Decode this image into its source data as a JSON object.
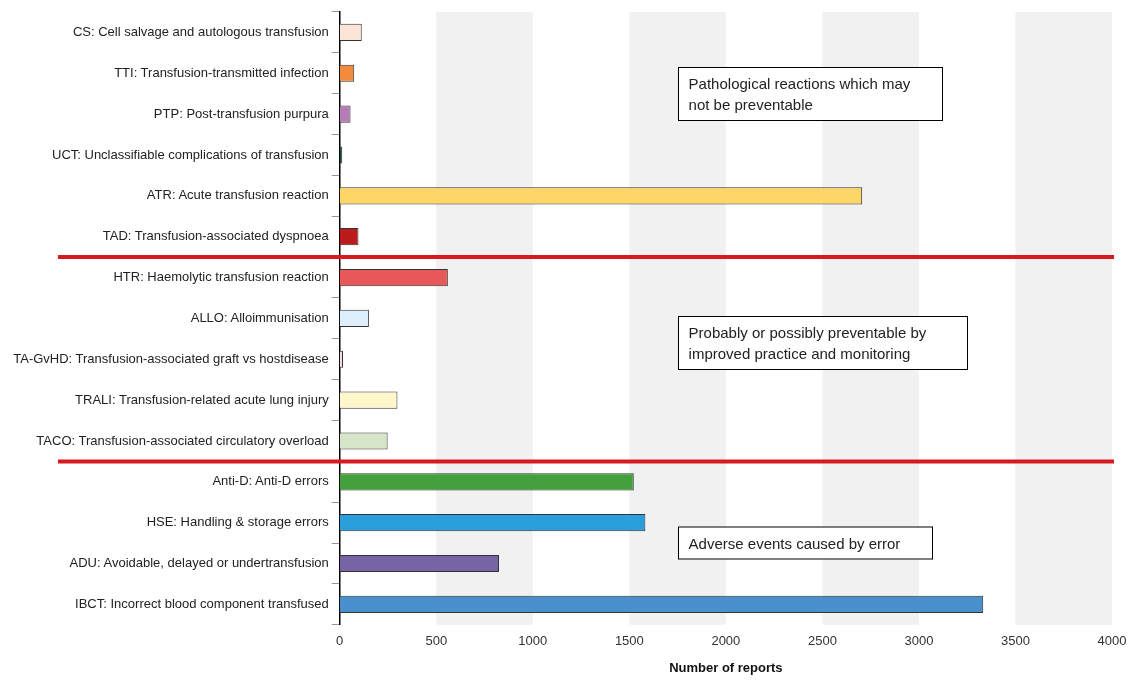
{
  "chart_data": {
    "type": "bar",
    "orientation": "horizontal",
    "xlabel": "Number of reports",
    "categories": [
      "CS: Cell salvage and autologous transfusion",
      "TTI: Transfusion-transmitted infection",
      "PTP: Post-transfusion purpura",
      "UCT: Unclassifiable complications of transfusion",
      "ATR: Acute transfusion reaction",
      "TAD: Transfusion-associated dyspnoea",
      "HTR: Haemolytic transfusion reaction",
      "ALLO: Alloimmunisation",
      "TA-GvHD: Transfusion-associated graft vs hostdisease",
      "TRALI: Transfusion-related acute lung injury",
      "TACO: Transfusion-associated circulatory overload",
      "Anti-D: Anti-D errors",
      "HSE: Handling & storage errors",
      "ADU: Avoidable, delayed or undertransfusion",
      "IBCT: Incorrect blood component transfused"
    ],
    "values": [
      114,
      75,
      56,
      13,
      2706,
      97,
      560,
      151,
      17,
      299,
      248,
      1523,
      1583,
      825,
      3333
    ],
    "colors": [
      "#fce4d6",
      "#f28c3c",
      "#b57db5",
      "#1a4d2e",
      "#fed668",
      "#bb1b1b",
      "#e85858",
      "#ddeefc",
      "#f3dde4",
      "#fff7cc",
      "#d6e4c8",
      "#43a03a",
      "#2a9fdc",
      "#7764a4",
      "#4a90cc"
    ],
    "xlim": [
      0,
      4000
    ],
    "xticks": [
      0,
      500,
      1000,
      1500,
      2000,
      2500,
      3000,
      3500,
      4000
    ],
    "bands": [
      {
        "axis": "x",
        "from": 500,
        "to": 1000,
        "color": "#f1f1f1"
      },
      {
        "axis": "x",
        "from": 1500,
        "to": 2000,
        "color": "#f1f1f1"
      },
      {
        "axis": "x",
        "from": 2500,
        "to": 3000,
        "color": "#f1f1f1"
      },
      {
        "axis": "x",
        "from": 3500,
        "to": 4000,
        "color": "#f1f1f1"
      }
    ],
    "ref_lines": [
      {
        "axis": "y",
        "value": "TAD: Transfusion-associated dyspnoea",
        "color": "#d71920"
      },
      {
        "axis": "y",
        "value": "TACO: Transfusion-associated circulatory overload",
        "color": "#d71920"
      }
    ],
    "annotations": [
      "Pathological reactions which may not be preventable",
      "Probably or possibly preventable by improved practice and monitoring",
      "Adverse events caused by error"
    ],
    "grid": false,
    "legend": false
  }
}
